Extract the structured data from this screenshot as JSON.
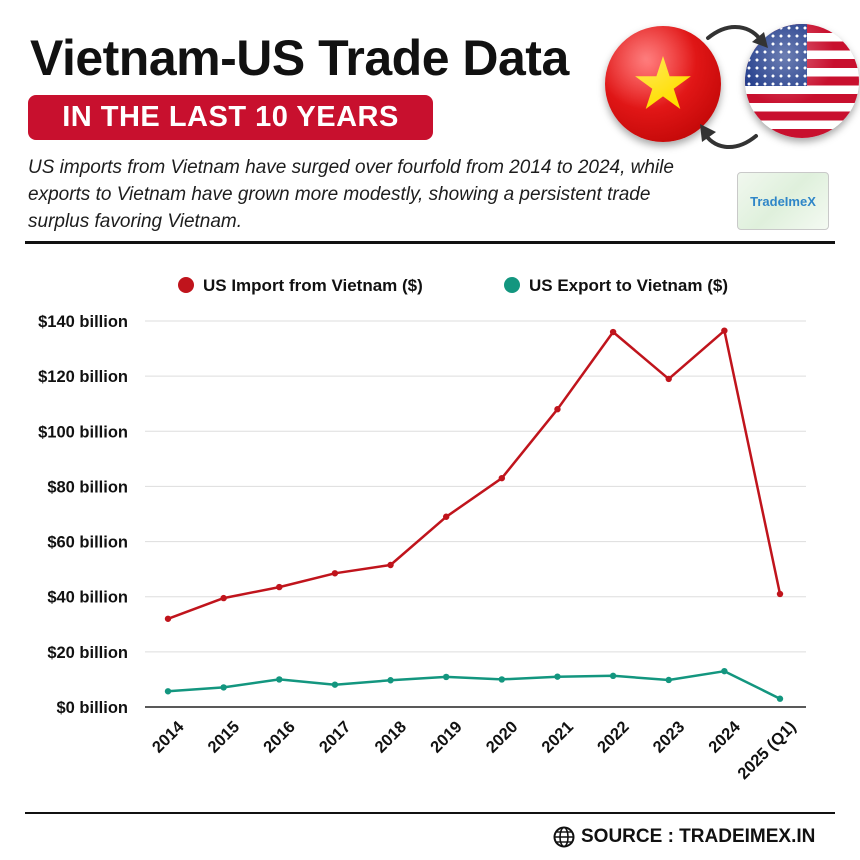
{
  "header": {
    "title": "Vietnam-US Trade Data",
    "banner": "IN THE LAST 10 YEARS",
    "subtitle": "US imports from Vietnam have surged over fourfold from 2014 to 2024, while exports to Vietnam have grown more modestly, showing a persistent trade surplus favoring Vietnam.",
    "logo_text": "TradeImeX"
  },
  "colors": {
    "import": "#c0141c",
    "export": "#13967f",
    "banner": "#c8102e",
    "grid": "#dddddd"
  },
  "chart_data": {
    "type": "line",
    "title": "",
    "xlabel": "",
    "ylabel": "",
    "ylim": [
      0,
      140
    ],
    "yticks": [
      0,
      20,
      40,
      60,
      80,
      100,
      120,
      140
    ],
    "ytick_labels": [
      "$0 billion",
      "$20 billion",
      "$40 billion",
      "$60 billion",
      "$80 billion",
      "$100 billion",
      "$120 billion",
      "$140 billion"
    ],
    "categories": [
      "2014",
      "2015",
      "2016",
      "2017",
      "2018",
      "2019",
      "2020",
      "2021",
      "2022",
      "2023",
      "2024",
      "2025 (Q1)"
    ],
    "grid": true,
    "legend_position": "top",
    "series": [
      {
        "name": "US Import from Vietnam ($)",
        "color_key": "import",
        "values": [
          32,
          39.5,
          43.5,
          48.5,
          51.5,
          69,
          83,
          108,
          136,
          119,
          136.5,
          41
        ]
      },
      {
        "name": "US Export to Vietnam ($)",
        "color_key": "export",
        "values": [
          5.7,
          7.1,
          10,
          8.1,
          9.7,
          10.9,
          10,
          11,
          11.3,
          9.8,
          13,
          3
        ]
      }
    ]
  },
  "footer": {
    "source": "SOURCE : TRADEIMEX.IN"
  }
}
